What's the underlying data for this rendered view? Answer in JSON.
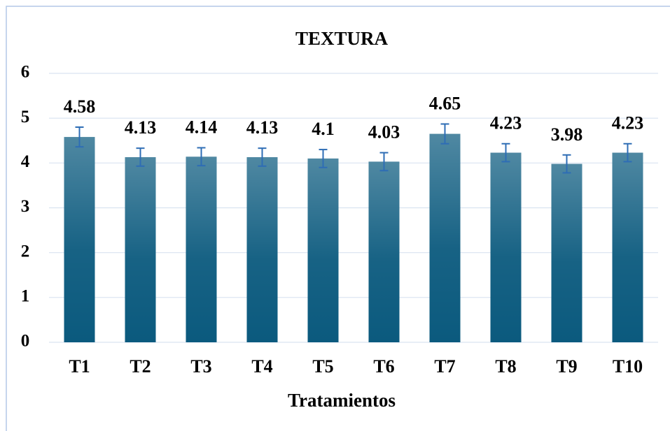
{
  "chart_data": {
    "type": "bar",
    "title": "TEXTURA",
    "x_label": "Tratamientos",
    "categories": [
      "T1",
      "T2",
      "T3",
      "T4",
      "T5",
      "T6",
      "T7",
      "T8",
      "T9",
      "T10"
    ],
    "values": [
      4.58,
      4.13,
      4.14,
      4.13,
      4.1,
      4.03,
      4.65,
      4.23,
      3.98,
      4.23
    ],
    "errors": [
      0.22,
      0.2,
      0.2,
      0.2,
      0.2,
      0.2,
      0.22,
      0.2,
      0.2,
      0.2
    ],
    "color": "#0b5a7e",
    "error_color": "#2e6db5",
    "ylim": [
      0,
      6
    ],
    "yticks": [
      0,
      1,
      2,
      3,
      4,
      5,
      6
    ],
    "grid": true
  }
}
